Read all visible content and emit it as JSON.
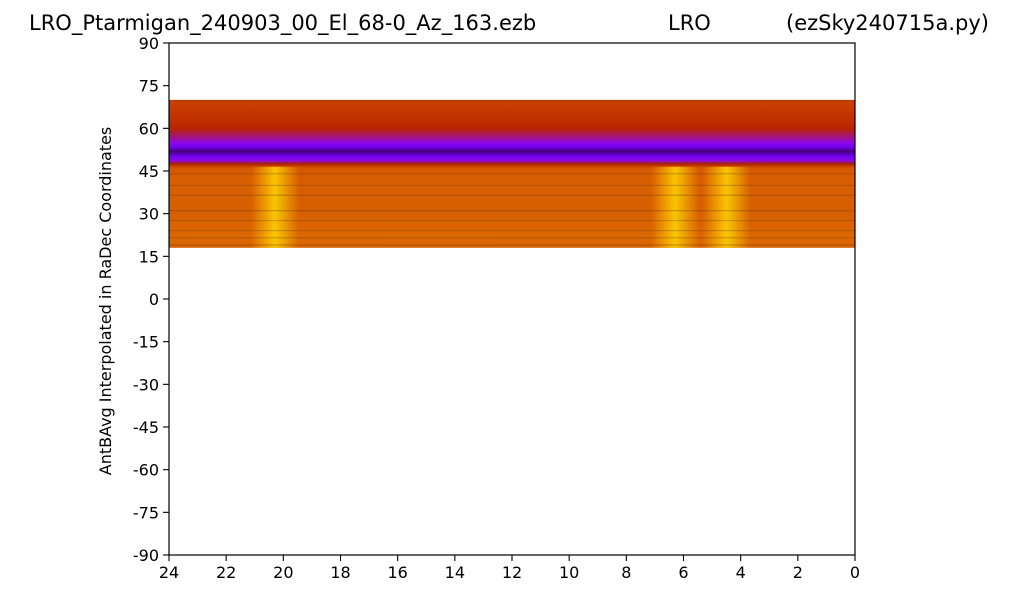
{
  "title": {
    "left": "LRO_Ptarmigan_240903_00_El_68-0_Az_163.ezb",
    "center": "LRO",
    "right": "(ezSky240715a.py)"
  },
  "chart_data": {
    "type": "heatmap",
    "title": "LRO_Ptarmigan_240903_00_El_68-0_Az_163.ezb",
    "xlabel": "",
    "ylabel": "AntBAvg Interpolated in RaDec Coordinates",
    "xlim": [
      24,
      0
    ],
    "ylim": [
      -90,
      90
    ],
    "x_ticks": [
      "24",
      "22",
      "20",
      "18",
      "16",
      "14",
      "12",
      "10",
      "8",
      "6",
      "4",
      "2",
      "0"
    ],
    "y_ticks": [
      "90",
      "75",
      "60",
      "45",
      "30",
      "15",
      "0",
      "-15",
      "-30",
      "-45",
      "-60",
      "-75",
      "-90"
    ],
    "grid": false,
    "colormap": "gnuplot",
    "data_extent_dec": [
      18,
      70
    ],
    "dark_band_dec": [
      47.5,
      54
    ],
    "profile_dec": [
      18,
      20,
      22,
      25,
      30,
      35,
      40,
      44,
      46,
      47.5,
      48.5,
      50,
      52,
      53.5,
      55,
      57,
      60,
      63,
      66,
      68,
      70
    ],
    "profile_level": [
      0.72,
      0.74,
      0.74,
      0.73,
      0.72,
      0.72,
      0.72,
      0.71,
      0.7,
      0.5,
      0.34,
      0.2,
      0.08,
      0.2,
      0.32,
      0.42,
      0.52,
      0.57,
      0.6,
      0.62,
      0.64
    ],
    "bright_ra": [
      20.3,
      6.3,
      4.5
    ],
    "colors": {
      "low": "#000000",
      "mid": "#8b00ff",
      "high": "#ffd700"
    }
  }
}
